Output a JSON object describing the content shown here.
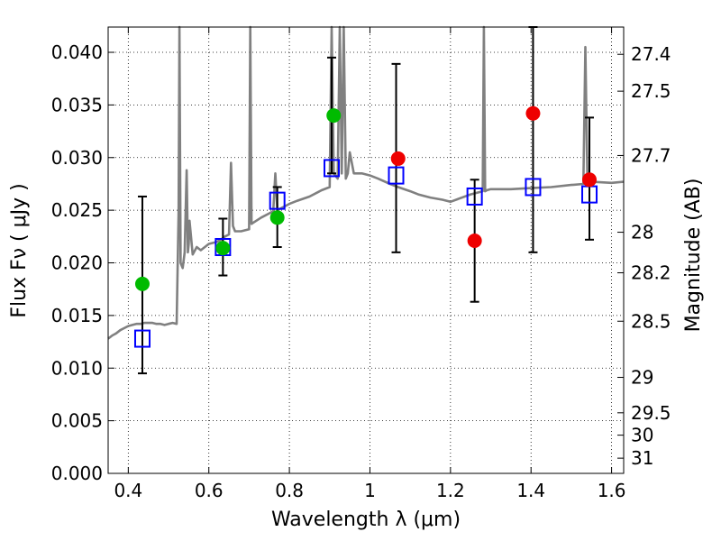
{
  "chart_data": {
    "type": "scatter",
    "title": "",
    "xlabel": "Wavelength  λ (μm)",
    "ylabel": "Flux  Fν  ( μJy )",
    "y2label": "Magnitude (AB)",
    "xlim": [
      0.35,
      1.63
    ],
    "ylim": [
      0.0,
      0.0424
    ],
    "grid": true,
    "x_ticks": [
      0.4,
      0.6,
      0.8,
      1.0,
      1.2,
      1.4,
      1.6
    ],
    "x_tick_labels": [
      "0.4",
      "0.6",
      "0.8",
      "1",
      "1.2",
      "1.4",
      "1.6"
    ],
    "y_ticks": [
      0.0,
      0.005,
      0.01,
      0.015,
      0.02,
      0.025,
      0.03,
      0.035,
      0.04
    ],
    "y_tick_labels": [
      "0.000",
      "0.005",
      "0.010",
      "0.015",
      "0.020",
      "0.025",
      "0.030",
      "0.035",
      "0.040"
    ],
    "y2_ticks": [
      27.4,
      27.5,
      27.7,
      28,
      28.2,
      28.5,
      29,
      29.5,
      30,
      31
    ],
    "y2_tick_labels": [
      "27.4",
      "27.5",
      "27.7",
      "28",
      "28.2",
      "28.5",
      "29",
      "29.5",
      "30",
      "31"
    ],
    "colors": {
      "model": "#808080",
      "model_photometry": "#0000ff",
      "observed_green": "#00bb00",
      "observed_red": "#ee0000",
      "errorbar": "#000000",
      "grid": "#000000"
    },
    "series": [
      {
        "marker": "line",
        "color": "#808080",
        "x": [
          0.35,
          0.36,
          0.37,
          0.38,
          0.39,
          0.4,
          0.41,
          0.42,
          0.43,
          0.44,
          0.45,
          0.46,
          0.47,
          0.48,
          0.49,
          0.5,
          0.51,
          0.52,
          0.525,
          0.527,
          0.53,
          0.535,
          0.54,
          0.545,
          0.548,
          0.55,
          0.552,
          0.56,
          0.57,
          0.58,
          0.6,
          0.62,
          0.63,
          0.64,
          0.65,
          0.655,
          0.66,
          0.665,
          0.68,
          0.7,
          0.703,
          0.706,
          0.71,
          0.73,
          0.75,
          0.76,
          0.765,
          0.77,
          0.78,
          0.8,
          0.82,
          0.85,
          0.87,
          0.88,
          0.9,
          0.905,
          0.91,
          0.92,
          0.925,
          0.93,
          0.935,
          0.94,
          0.945,
          0.95,
          0.96,
          0.98,
          1.0,
          1.02,
          1.05,
          1.07,
          1.1,
          1.12,
          1.15,
          1.18,
          1.2,
          1.25,
          1.28,
          1.283,
          1.286,
          1.29,
          1.3,
          1.35,
          1.4,
          1.45,
          1.5,
          1.53,
          1.535,
          1.54,
          1.55,
          1.6,
          1.63
        ],
        "y": [
          0.0128,
          0.0131,
          0.0133,
          0.0136,
          0.0138,
          0.014,
          0.0141,
          0.0142,
          0.0142,
          0.0143,
          0.0143,
          0.0143,
          0.0142,
          0.0142,
          0.0141,
          0.0142,
          0.0143,
          0.0142,
          0.025,
          0.0424,
          0.02,
          0.0195,
          0.021,
          0.0288,
          0.021,
          0.0218,
          0.024,
          0.0208,
          0.0215,
          0.0212,
          0.0218,
          0.022,
          0.0222,
          0.0225,
          0.0227,
          0.0295,
          0.0235,
          0.023,
          0.023,
          0.0232,
          0.0424,
          0.0237,
          0.0238,
          0.0243,
          0.0247,
          0.0249,
          0.0285,
          0.025,
          0.0252,
          0.0256,
          0.0259,
          0.0263,
          0.0267,
          0.0269,
          0.0272,
          0.0424,
          0.0285,
          0.028,
          0.0424,
          0.0285,
          0.0424,
          0.028,
          0.0285,
          0.0305,
          0.0285,
          0.0285,
          0.0283,
          0.028,
          0.0275,
          0.0272,
          0.0268,
          0.0265,
          0.0262,
          0.026,
          0.0258,
          0.0265,
          0.0268,
          0.0424,
          0.0268,
          0.0269,
          0.027,
          0.027,
          0.0271,
          0.0272,
          0.0274,
          0.0275,
          0.0405,
          0.0276,
          0.0277,
          0.0276,
          0.0277
        ]
      },
      {
        "marker": "open-square",
        "color": "#0000ff",
        "x": [
          0.435,
          0.635,
          0.77,
          0.905,
          1.065,
          1.26,
          1.405,
          1.545
        ],
        "y": [
          0.0128,
          0.0215,
          0.0259,
          0.029,
          0.0283,
          0.0263,
          0.0272,
          0.0265
        ]
      },
      {
        "marker": "filled-circle",
        "color": "#00bb00",
        "x": [
          0.435,
          0.635,
          0.77,
          0.91
        ],
        "y": [
          0.018,
          0.0214,
          0.0243,
          0.034
        ]
      },
      {
        "marker": "filled-circle",
        "color": "#ee0000",
        "x": [
          1.07,
          1.26,
          1.405,
          1.545
        ],
        "y": [
          0.0299,
          0.0221,
          0.0342,
          0.0279
        ]
      },
      {
        "marker": "errorbar",
        "color": "#000000",
        "x": [
          0.435,
          0.635,
          0.77,
          0.905,
          1.065,
          1.26,
          1.405,
          1.545
        ],
        "y_low": [
          0.0095,
          0.0188,
          0.0215,
          0.0285,
          0.021,
          0.0163,
          0.021,
          0.0222
        ],
        "y_high": [
          0.0263,
          0.0242,
          0.0272,
          0.0395,
          0.0389,
          0.0279,
          0.0424,
          0.0338
        ]
      }
    ]
  }
}
